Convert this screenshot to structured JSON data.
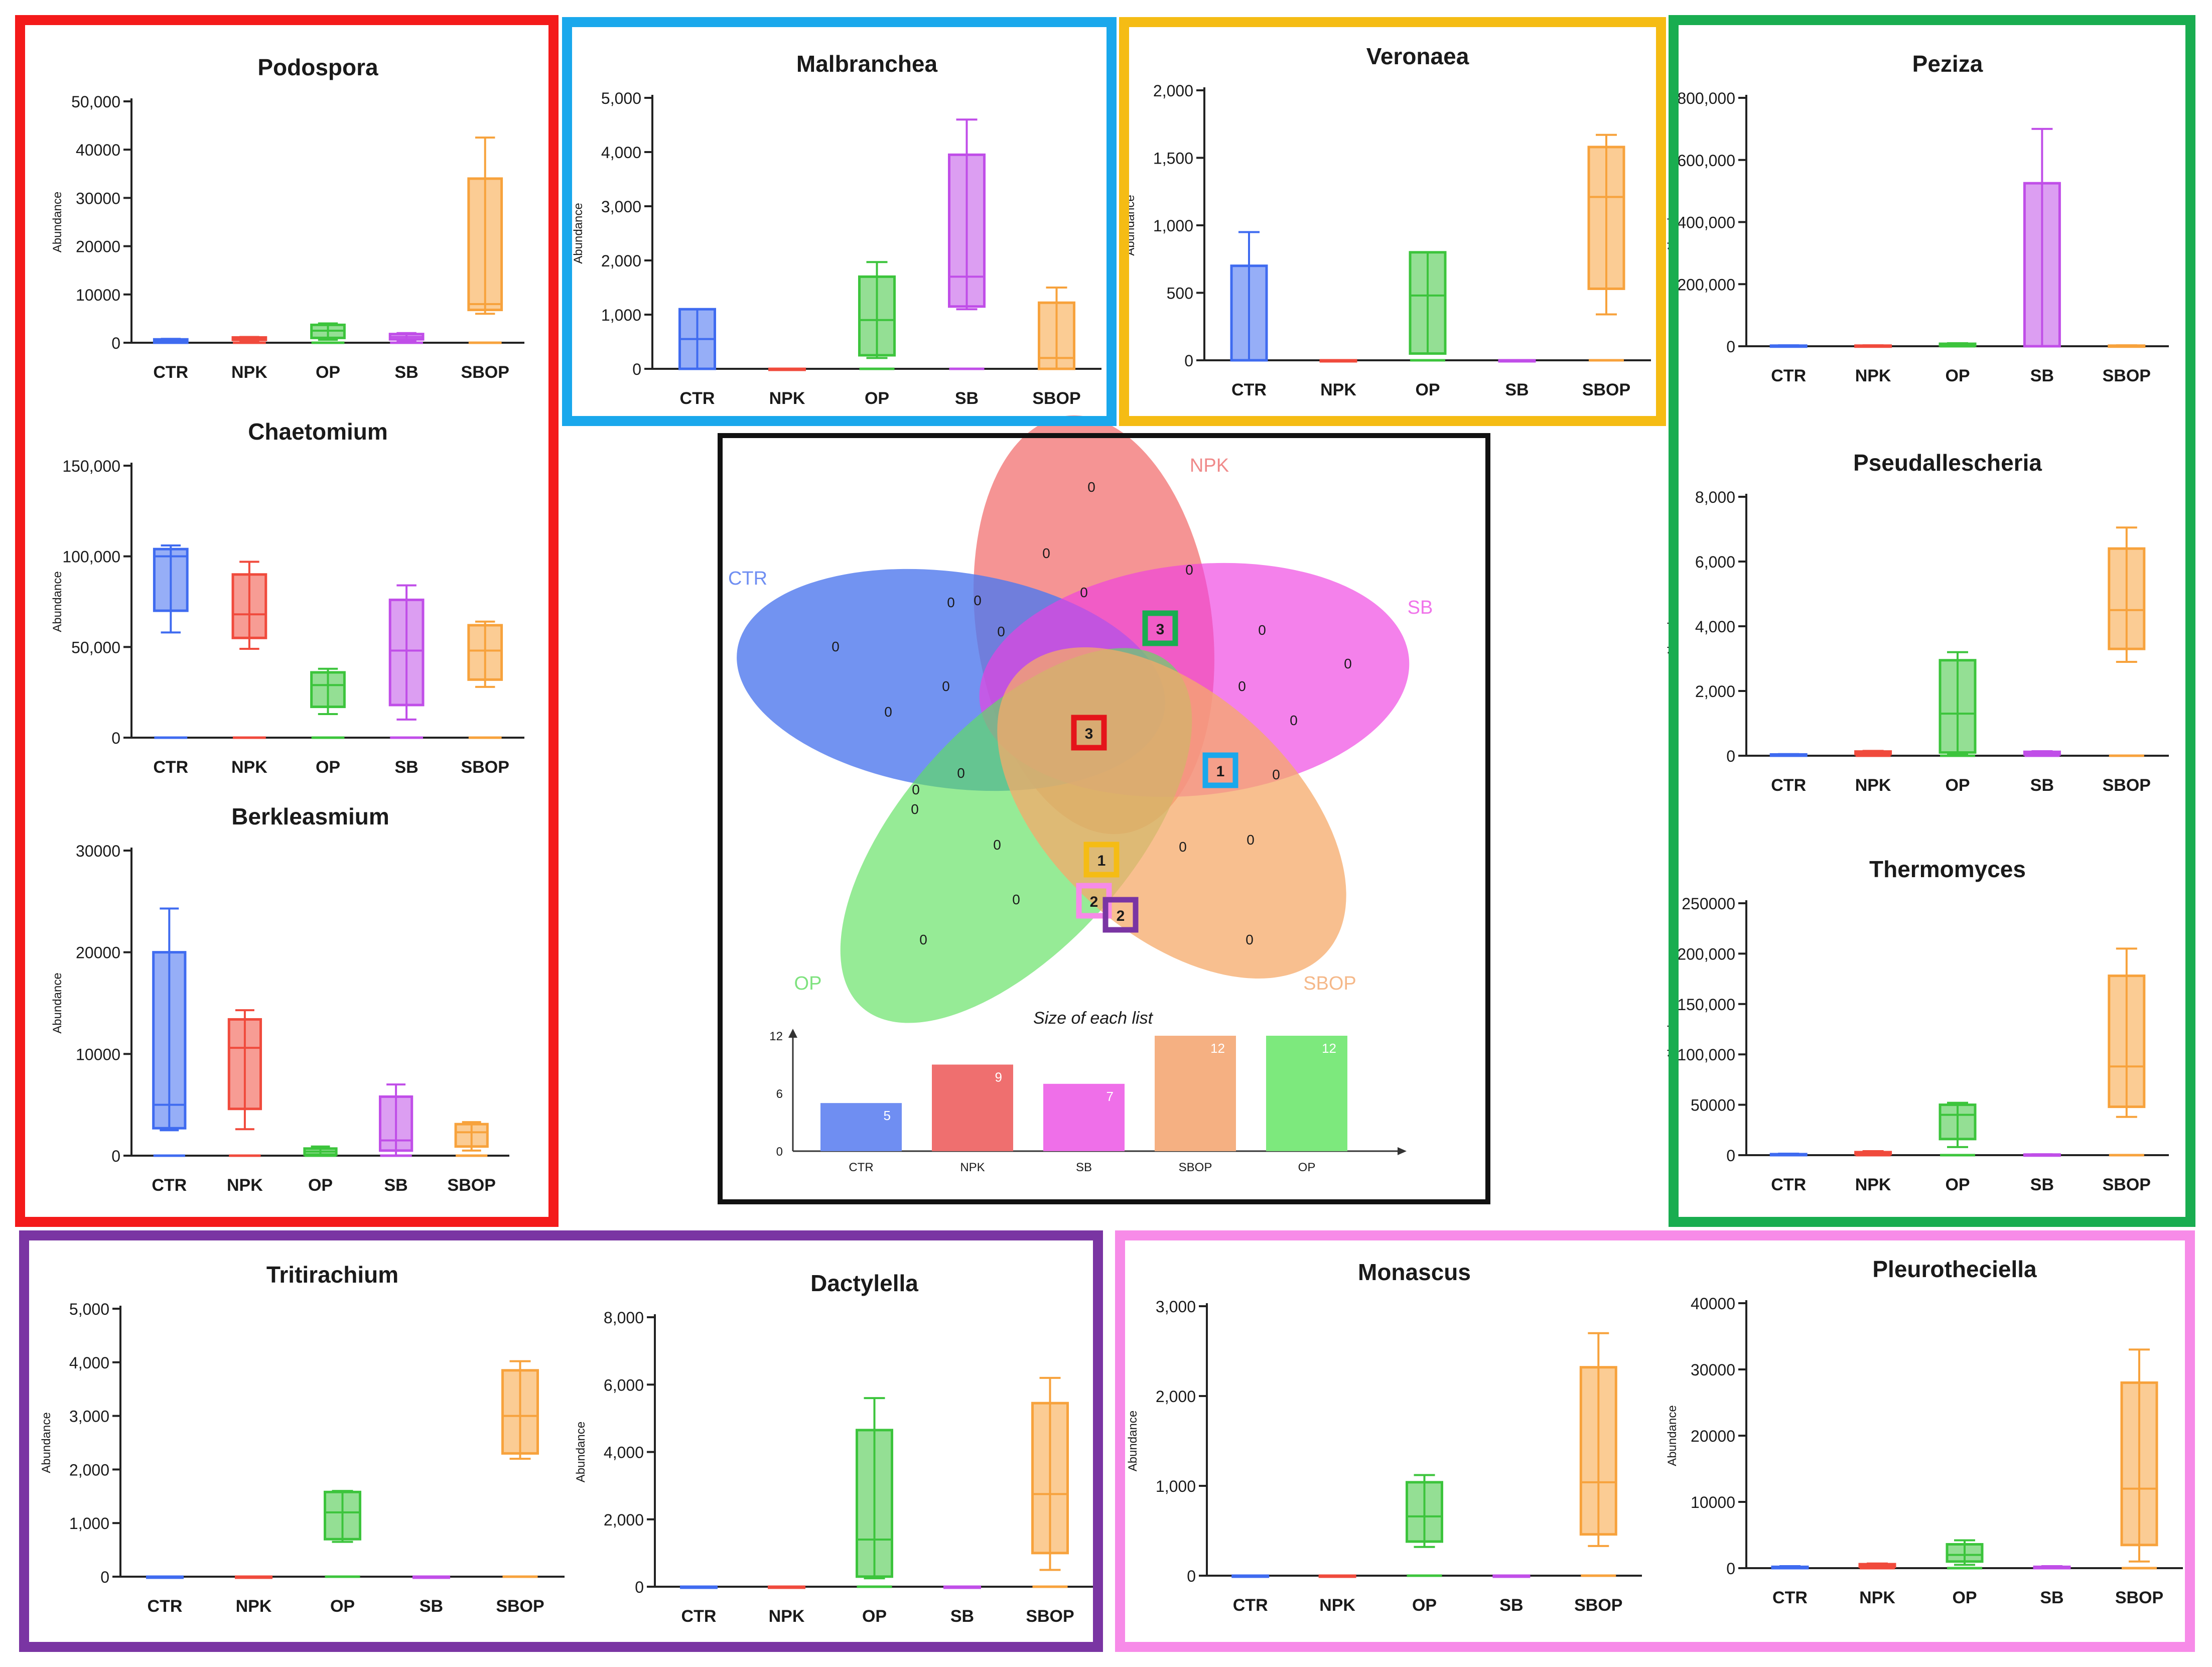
{
  "categories": [
    "CTR",
    "NPK",
    "OP",
    "SB",
    "SBOP"
  ],
  "colors": {
    "CTR": "#3f6bf0",
    "NPK": "#f04a3c",
    "OP": "#3cc43c",
    "SB": "#c04ee8",
    "SBOP": "#f7a23c",
    "group_red": "#f41a1a",
    "group_blue": "#1aa8ec",
    "group_yellow": "#f5bc14",
    "group_green": "#19ad50",
    "group_purple": "#7a35a3",
    "group_pink": "#f78be8"
  },
  "ylabel": "Abundance",
  "chart_data": [
    {
      "type": "box",
      "title": "Podospora",
      "ylim": [
        0,
        50000
      ],
      "yticks": [
        0,
        10000,
        20000,
        30000,
        40000,
        50000
      ],
      "ytick_labels": [
        "0",
        "10000",
        "20000",
        "30000",
        "40000",
        "50,000"
      ],
      "boxes": [
        {
          "category": "CTR",
          "min": 0,
          "q1": 0,
          "median": 300,
          "q3": 700,
          "max": 800
        },
        {
          "category": "NPK",
          "min": 300,
          "q1": 600,
          "median": 900,
          "q3": 1100,
          "max": 1200
        },
        {
          "category": "OP",
          "min": 600,
          "q1": 1000,
          "median": 2500,
          "q3": 3700,
          "max": 4000
        },
        {
          "category": "SB",
          "min": 300,
          "q1": 700,
          "median": 1200,
          "q3": 1800,
          "max": 2000
        },
        {
          "category": "SBOP",
          "min": 6000,
          "q1": 6800,
          "median": 8000,
          "q3": 34000,
          "max": 42500
        }
      ]
    },
    {
      "type": "box",
      "title": "Chaetomium",
      "ylim": [
        0,
        150000
      ],
      "yticks": [
        0,
        50000,
        100000,
        150000
      ],
      "ytick_labels": [
        "0",
        "50,000",
        "100,000",
        "150,000"
      ],
      "boxes": [
        {
          "category": "CTR",
          "min": 58000,
          "q1": 70000,
          "median": 100000,
          "q3": 104000,
          "max": 106000
        },
        {
          "category": "NPK",
          "min": 49000,
          "q1": 55000,
          "median": 68000,
          "q3": 90000,
          "max": 97000
        },
        {
          "category": "OP",
          "min": 13000,
          "q1": 17000,
          "median": 29000,
          "q3": 36000,
          "max": 38000
        },
        {
          "category": "SB",
          "min": 10000,
          "q1": 18000,
          "median": 48000,
          "q3": 76000,
          "max": 84000
        },
        {
          "category": "SBOP",
          "min": 28000,
          "q1": 32000,
          "median": 48000,
          "q3": 62000,
          "max": 64000
        }
      ]
    },
    {
      "type": "box",
      "title": "Berkleasmium",
      "ylim": [
        0,
        30000
      ],
      "yticks": [
        0,
        10000,
        20000,
        30000
      ],
      "ytick_labels": [
        "0",
        "10000",
        "20000",
        "30000"
      ],
      "boxes": [
        {
          "category": "CTR",
          "min": 2500,
          "q1": 2700,
          "median": 5000,
          "q3": 20000,
          "max": 24300
        },
        {
          "category": "NPK",
          "min": 2600,
          "q1": 4600,
          "median": 10600,
          "q3": 13400,
          "max": 14300
        },
        {
          "category": "OP",
          "min": 0,
          "q1": 100,
          "median": 400,
          "q3": 700,
          "max": 900
        },
        {
          "category": "SB",
          "min": 0,
          "q1": 500,
          "median": 1500,
          "q3": 5800,
          "max": 7000
        },
        {
          "category": "SBOP",
          "min": 500,
          "q1": 900,
          "median": 2300,
          "q3": 3100,
          "max": 3300
        }
      ]
    },
    {
      "type": "box",
      "title": "Malbranchea",
      "ylim": [
        0,
        5000
      ],
      "yticks": [
        0,
        1000,
        2000,
        3000,
        4000,
        5000
      ],
      "ytick_labels": [
        "0",
        "1,000",
        "2,000",
        "3,000",
        "4,000",
        "5,000"
      ],
      "boxes": [
        {
          "category": "CTR",
          "min": 0,
          "q1": 0,
          "median": 550,
          "q3": 1100,
          "max": 1100
        },
        {
          "category": "NPK",
          "min": 0,
          "q1": 0,
          "median": 0,
          "q3": 0,
          "max": 0
        },
        {
          "category": "OP",
          "min": 200,
          "q1": 250,
          "median": 900,
          "q3": 1700,
          "max": 1970
        },
        {
          "category": "SB",
          "min": 1100,
          "q1": 1150,
          "median": 1700,
          "q3": 3950,
          "max": 4600
        },
        {
          "category": "SBOP",
          "min": 0,
          "q1": 0,
          "median": 200,
          "q3": 1220,
          "max": 1500
        }
      ]
    },
    {
      "type": "box",
      "title": "Veronaea",
      "ylim": [
        0,
        2000
      ],
      "yticks": [
        0,
        500,
        1000,
        1500,
        2000
      ],
      "ytick_labels": [
        "0",
        "500",
        "1,000",
        "1,500",
        "2,000"
      ],
      "boxes": [
        {
          "category": "CTR",
          "min": 0,
          "q1": 0,
          "median": 700,
          "q3": 700,
          "max": 950
        },
        {
          "category": "NPK",
          "min": 0,
          "q1": 0,
          "median": 0,
          "q3": 0,
          "max": 0
        },
        {
          "category": "OP",
          "min": 50,
          "q1": 50,
          "median": 480,
          "q3": 800,
          "max": 800
        },
        {
          "category": "SB",
          "min": 0,
          "q1": 0,
          "median": 0,
          "q3": 0,
          "max": 0
        },
        {
          "category": "SBOP",
          "min": 340,
          "q1": 530,
          "median": 1210,
          "q3": 1580,
          "max": 1670
        }
      ]
    },
    {
      "type": "box",
      "title": "Peziza",
      "ylim": [
        0,
        800000
      ],
      "yticks": [
        0,
        200000,
        400000,
        600000,
        800000
      ],
      "ytick_labels": [
        "0",
        "200,000",
        "400,000",
        "600,000",
        "800,000"
      ],
      "boxes": [
        {
          "category": "CTR",
          "min": 0,
          "q1": 0,
          "median": 1000,
          "q3": 2000,
          "max": 3000
        },
        {
          "category": "NPK",
          "min": 0,
          "q1": 0,
          "median": 1000,
          "q3": 2000,
          "max": 3000
        },
        {
          "category": "OP",
          "min": 1000,
          "q1": 2000,
          "median": 5000,
          "q3": 8000,
          "max": 10000
        },
        {
          "category": "SB",
          "min": 0,
          "q1": 0,
          "median": 0,
          "q3": 525000,
          "max": 700000
        },
        {
          "category": "SBOP",
          "min": 0,
          "q1": 0,
          "median": 1000,
          "q3": 2000,
          "max": 3000
        }
      ]
    },
    {
      "type": "box",
      "title": "Pseudallescheria",
      "ylim": [
        0,
        8000
      ],
      "yticks": [
        0,
        2000,
        4000,
        6000,
        8000
      ],
      "ytick_labels": [
        "0",
        "2,000",
        "4,000",
        "6,000",
        "8,000"
      ],
      "boxes": [
        {
          "category": "CTR",
          "min": 0,
          "q1": 0,
          "median": 20,
          "q3": 40,
          "max": 50
        },
        {
          "category": "NPK",
          "min": 20,
          "q1": 50,
          "median": 90,
          "q3": 130,
          "max": 150
        },
        {
          "category": "OP",
          "min": 50,
          "q1": 100,
          "median": 1300,
          "q3": 2950,
          "max": 3200
        },
        {
          "category": "SB",
          "min": 20,
          "q1": 40,
          "median": 80,
          "q3": 120,
          "max": 140
        },
        {
          "category": "SBOP",
          "min": 2900,
          "q1": 3300,
          "median": 4500,
          "q3": 6400,
          "max": 7050
        }
      ]
    },
    {
      "type": "box",
      "title": "Thermomyces",
      "ylim": [
        0,
        250000
      ],
      "yticks": [
        0,
        50000,
        100000,
        150000,
        200000,
        250000
      ],
      "ytick_labels": [
        "0",
        "50000",
        "100,000",
        "150,000",
        "200,000",
        "250000"
      ],
      "boxes": [
        {
          "category": "CTR",
          "min": 0,
          "q1": 0,
          "median": 500,
          "q3": 1000,
          "max": 1500
        },
        {
          "category": "NPK",
          "min": 500,
          "q1": 1000,
          "median": 2000,
          "q3": 3000,
          "max": 4000
        },
        {
          "category": "OP",
          "min": 8000,
          "q1": 16000,
          "median": 40000,
          "q3": 50000,
          "max": 52000
        },
        {
          "category": "SB",
          "min": 0,
          "q1": 0,
          "median": 300,
          "q3": 600,
          "max": 900
        },
        {
          "category": "SBOP",
          "min": 38000,
          "q1": 48000,
          "median": 88000,
          "q3": 178000,
          "max": 205000
        }
      ]
    },
    {
      "type": "box",
      "title": "Tritirachium",
      "ylim": [
        0,
        5000
      ],
      "yticks": [
        0,
        1000,
        2000,
        3000,
        4000,
        5000
      ],
      "ytick_labels": [
        "0",
        "1,000",
        "2,000",
        "3,000",
        "4,000",
        "5,000"
      ],
      "boxes": [
        {
          "category": "CTR",
          "min": 0,
          "q1": 0,
          "median": 0,
          "q3": 0,
          "max": 0
        },
        {
          "category": "NPK",
          "min": 0,
          "q1": 0,
          "median": 0,
          "q3": 0,
          "max": 0
        },
        {
          "category": "OP",
          "min": 650,
          "q1": 700,
          "median": 1200,
          "q3": 1580,
          "max": 1600
        },
        {
          "category": "SB",
          "min": 0,
          "q1": 0,
          "median": 0,
          "q3": 0,
          "max": 0
        },
        {
          "category": "SBOP",
          "min": 2200,
          "q1": 2300,
          "median": 3000,
          "q3": 3850,
          "max": 4020
        }
      ]
    },
    {
      "type": "box",
      "title": "Dactylella",
      "ylim": [
        0,
        8000
      ],
      "yticks": [
        0,
        2000,
        4000,
        6000,
        8000
      ],
      "ytick_labels": [
        "0",
        "2,000",
        "4,000",
        "6,000",
        "8,000"
      ],
      "boxes": [
        {
          "category": "CTR",
          "min": 0,
          "q1": 0,
          "median": 0,
          "q3": 0,
          "max": 0
        },
        {
          "category": "NPK",
          "min": 0,
          "q1": 0,
          "median": 0,
          "q3": 0,
          "max": 0
        },
        {
          "category": "OP",
          "min": 250,
          "q1": 300,
          "median": 1400,
          "q3": 4650,
          "max": 5600
        },
        {
          "category": "SB",
          "min": 0,
          "q1": 0,
          "median": 0,
          "q3": 0,
          "max": 0
        },
        {
          "category": "SBOP",
          "min": 500,
          "q1": 1000,
          "median": 2750,
          "q3": 5450,
          "max": 6200
        }
      ]
    },
    {
      "type": "box",
      "title": "Monascus",
      "ylim": [
        0,
        3000
      ],
      "yticks": [
        0,
        1000,
        2000,
        3000
      ],
      "ytick_labels": [
        "0",
        "1,000",
        "2,000",
        "3,000"
      ],
      "boxes": [
        {
          "category": "CTR",
          "min": 0,
          "q1": 0,
          "median": 0,
          "q3": 0,
          "max": 0
        },
        {
          "category": "NPK",
          "min": 0,
          "q1": 0,
          "median": 0,
          "q3": 0,
          "max": 0
        },
        {
          "category": "OP",
          "min": 320,
          "q1": 380,
          "median": 660,
          "q3": 1040,
          "max": 1120
        },
        {
          "category": "SB",
          "min": 0,
          "q1": 0,
          "median": 0,
          "q3": 0,
          "max": 0
        },
        {
          "category": "SBOP",
          "min": 330,
          "q1": 460,
          "median": 1040,
          "q3": 2320,
          "max": 2700
        }
      ]
    },
    {
      "type": "box",
      "title": "Pleurotheciella",
      "ylim": [
        0,
        40000
      ],
      "yticks": [
        0,
        10000,
        20000,
        30000,
        40000
      ],
      "ytick_labels": [
        "0",
        "10000",
        "20000",
        "30000",
        "40000"
      ],
      "boxes": [
        {
          "category": "CTR",
          "min": 0,
          "q1": 0,
          "median": 100,
          "q3": 200,
          "max": 300
        },
        {
          "category": "NPK",
          "min": 100,
          "q1": 200,
          "median": 400,
          "q3": 600,
          "max": 700
        },
        {
          "category": "OP",
          "min": 500,
          "q1": 1000,
          "median": 2000,
          "q3": 3600,
          "max": 4200
        },
        {
          "category": "SB",
          "min": 0,
          "q1": 0,
          "median": 100,
          "q3": 200,
          "max": 300
        },
        {
          "category": "SBOP",
          "min": 1000,
          "q1": 3500,
          "median": 12000,
          "q3": 28000,
          "max": 33000
        }
      ]
    },
    {
      "type": "bar",
      "title": "Size of each list",
      "categories": [
        "CTR",
        "NPK",
        "SB",
        "SBOP",
        "OP"
      ],
      "values": [
        5,
        9,
        7,
        12,
        12
      ],
      "yticks": [
        0,
        6,
        12
      ],
      "ylim": [
        0,
        13
      ]
    }
  ],
  "venn": {
    "set_labels": [
      "NPK",
      "CTR",
      "SB",
      "OP",
      "SBOP"
    ],
    "zero_label": "0",
    "highlighted": [
      {
        "value": "3"
      },
      {
        "value": "3"
      },
      {
        "value": "1"
      },
      {
        "value": "1"
      },
      {
        "value": "2"
      },
      {
        "value": "2"
      }
    ]
  }
}
